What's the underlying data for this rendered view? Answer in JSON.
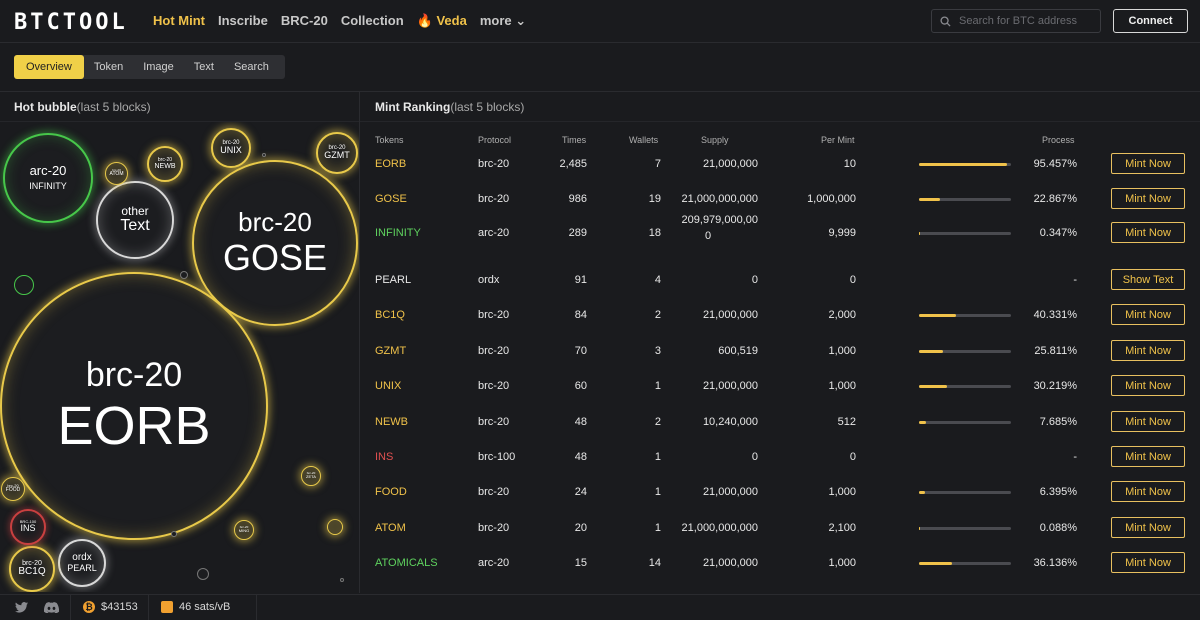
{
  "app": {
    "logo": "BTCTOOL"
  },
  "nav": [
    {
      "label": "Hot Mint",
      "active": true
    },
    {
      "label": "Inscribe"
    },
    {
      "label": "BRC-20"
    },
    {
      "label": "Collection"
    },
    {
      "label": "🔥 Veda"
    },
    {
      "label": "more ⌄"
    }
  ],
  "search": {
    "placeholder": "Search for BTC address"
  },
  "connect_label": "Connect",
  "tabs": [
    "Overview",
    "Token",
    "Image",
    "Text",
    "Search"
  ],
  "hot_bubble": {
    "title": "Hot bubble",
    "sub": "(last 5 blocks)"
  },
  "mint_ranking": {
    "title": "Mint Ranking",
    "sub": "(last 5 blocks)"
  },
  "bubbles": [
    {
      "protocol": "brc-20",
      "name": "EORB",
      "color": "yellow"
    },
    {
      "protocol": "brc-20",
      "name": "GOSE",
      "color": "yellow"
    },
    {
      "protocol": "arc-20",
      "name": "INFINITY",
      "color": "green"
    },
    {
      "protocol": "other",
      "name": "Text",
      "color": "white"
    },
    {
      "protocol": "brc-20",
      "name": "UNIX",
      "color": "yellow"
    },
    {
      "protocol": "brc-20",
      "name": "GZMT",
      "color": "yellow"
    },
    {
      "protocol": "brc-20",
      "name": "NEWB",
      "color": "yellow"
    },
    {
      "protocol": "brc-20",
      "name": "ATOM",
      "color": "yellow"
    },
    {
      "protocol": "ordx",
      "name": "PEARL",
      "color": "white"
    },
    {
      "protocol": "brc-20",
      "name": "BC1Q",
      "color": "yellow"
    },
    {
      "protocol": "BRC-100",
      "name": "INS",
      "color": "red"
    },
    {
      "protocol": "brc-20",
      "name": "FOOD",
      "color": "yellow"
    },
    {
      "protocol": "brc-20",
      "name": "ZETA",
      "color": "yellow"
    },
    {
      "protocol": "brc-20",
      "name": "MING",
      "color": "yellow"
    }
  ],
  "table": {
    "headers": [
      "Tokens",
      "Protocol",
      "Times",
      "Wallets",
      "Supply",
      "Per Mint",
      "Process"
    ],
    "rows": [
      {
        "token": "EORB",
        "color": "#f0c24a",
        "protocol": "brc-20",
        "times": "2,485",
        "wallets": "7",
        "supply": "21,000,000",
        "per_mint": "10",
        "progress": 95.457,
        "process": "95.457%",
        "action": "Mint Now"
      },
      {
        "token": "GOSE",
        "color": "#f0c24a",
        "protocol": "brc-20",
        "times": "986",
        "wallets": "19",
        "supply": "21,000,000,000",
        "per_mint": "1,000,000",
        "progress": 22.867,
        "process": "22.867%",
        "action": "Mint Now"
      },
      {
        "token": "INFINITY",
        "color": "#5fd35f",
        "protocol": "arc-20",
        "times": "289",
        "wallets": "18",
        "supply_l1": "209,979,000,00",
        "supply_l2": "0",
        "per_mint": "9,999",
        "progress": 0.347,
        "process": "0.347%",
        "action": "Mint Now"
      },
      {
        "token": "PEARL",
        "color": "#e8e8e8",
        "protocol": "ordx",
        "times": "91",
        "wallets": "4",
        "supply": "0",
        "per_mint": "0",
        "progress": null,
        "process": "-",
        "action": "Show Text"
      },
      {
        "token": "BC1Q",
        "color": "#f0c24a",
        "protocol": "brc-20",
        "times": "84",
        "wallets": "2",
        "supply": "21,000,000",
        "per_mint": "2,000",
        "progress": 40.331,
        "process": "40.331%",
        "action": "Mint Now"
      },
      {
        "token": "GZMT",
        "color": "#f0c24a",
        "protocol": "brc-20",
        "times": "70",
        "wallets": "3",
        "supply": "600,519",
        "per_mint": "1,000",
        "progress": 25.811,
        "process": "25.811%",
        "action": "Mint Now"
      },
      {
        "token": "UNIX",
        "color": "#f0c24a",
        "protocol": "brc-20",
        "times": "60",
        "wallets": "1",
        "supply": "21,000,000",
        "per_mint": "1,000",
        "progress": 30.219,
        "process": "30.219%",
        "action": "Mint Now"
      },
      {
        "token": "NEWB",
        "color": "#f0c24a",
        "protocol": "brc-20",
        "times": "48",
        "wallets": "2",
        "supply": "10,240,000",
        "per_mint": "512",
        "progress": 7.685,
        "process": "7.685%",
        "action": "Mint Now"
      },
      {
        "token": "INS",
        "color": "#e05050",
        "protocol": "brc-100",
        "times": "48",
        "wallets": "1",
        "supply": "0",
        "per_mint": "0",
        "progress": null,
        "process": "-",
        "action": "Mint Now"
      },
      {
        "token": "FOOD",
        "color": "#f0c24a",
        "protocol": "brc-20",
        "times": "24",
        "wallets": "1",
        "supply": "21,000,000",
        "per_mint": "1,000",
        "progress": 6.395,
        "process": "6.395%",
        "action": "Mint Now"
      },
      {
        "token": "ATOM",
        "color": "#f0c24a",
        "protocol": "brc-20",
        "times": "20",
        "wallets": "1",
        "supply": "21,000,000,000",
        "per_mint": "2,100",
        "progress": 0.088,
        "process": "0.088%",
        "action": "Mint Now"
      },
      {
        "token": "ATOMICALS",
        "color": "#5fd35f",
        "protocol": "arc-20",
        "times": "15",
        "wallets": "14",
        "supply": "21,000,000",
        "per_mint": "1,000",
        "progress": 36.136,
        "process": "36.136%",
        "action": "Mint Now"
      }
    ]
  },
  "footer": {
    "btc_price": "$43153",
    "gas": "46 sats/vB"
  }
}
